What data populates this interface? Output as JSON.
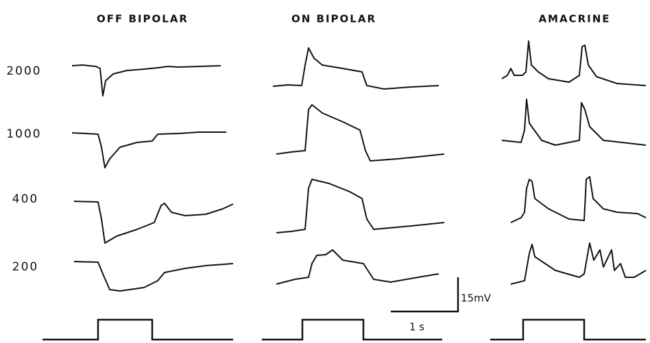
{
  "columns": [
    {
      "title": "OFF BIPOLAR"
    },
    {
      "title": "ON BIPOLAR"
    },
    {
      "title": "AMACRINE"
    }
  ],
  "rows": [
    "2000",
    "1000",
    "400",
    "200"
  ],
  "scale_bar": {
    "voltage": "15mV",
    "time": "1 s"
  }
}
